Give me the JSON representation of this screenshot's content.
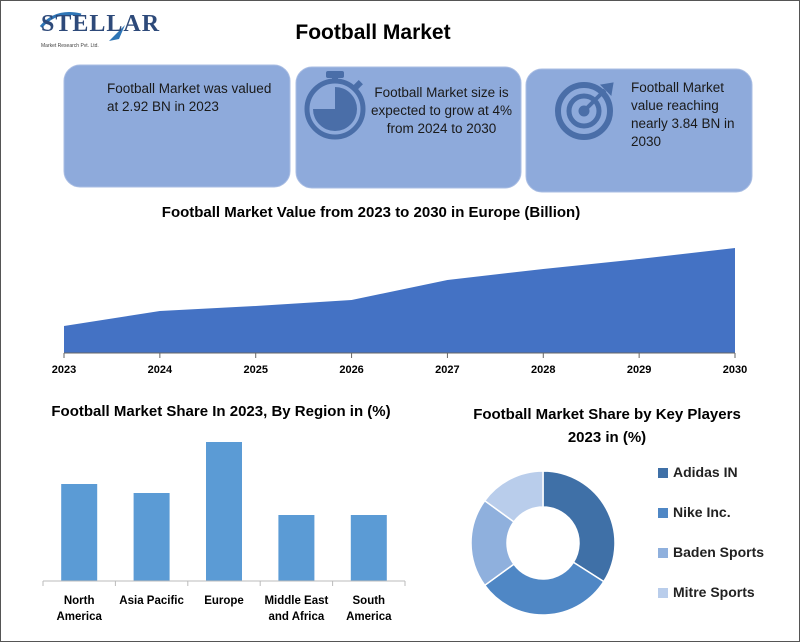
{
  "logo": {
    "name": "STELLAR",
    "tagline": "Market Research Pvt. Ltd."
  },
  "title": "Football Market",
  "stats": [
    "Football Market was valued at 2.92 BN in 2023",
    "Football Market size is expected to grow at 4% from 2024 to 2030",
    "Football Market value reaching nearly 3.84 BN in 2030"
  ],
  "chart_data": [
    {
      "type": "area",
      "title": "Football Market Value from 2023 to 2030 in Europe (Billion)",
      "categories": [
        "2023",
        "2024",
        "2025",
        "2026",
        "2027",
        "2028",
        "2029",
        "2030"
      ],
      "values": [
        27,
        42,
        47,
        53,
        73,
        84,
        94,
        105
      ],
      "ylim": [
        0,
        110
      ],
      "color": "#4472c4"
    },
    {
      "type": "bar",
      "title": "Football Market Share In 2023, By Region in (%)",
      "categories": [
        "North America",
        "Asia Pacific",
        "Europe",
        "Middle East and Africa",
        "South America"
      ],
      "values": [
        97,
        88,
        139,
        66,
        66
      ],
      "ylim": [
        0,
        150
      ],
      "color": "#5b9bd5"
    },
    {
      "type": "donut",
      "title": "Football Market Share by Key Players 2023 in (%)",
      "categories": [
        "Adidas IN",
        "Nike Inc.",
        "Baden Sports",
        "Mitre Sports"
      ],
      "values": [
        34,
        31,
        20,
        15
      ],
      "colors": [
        "#3f70a7",
        "#4f87c5",
        "#8fb0dd",
        "#b9cdeb"
      ]
    }
  ]
}
